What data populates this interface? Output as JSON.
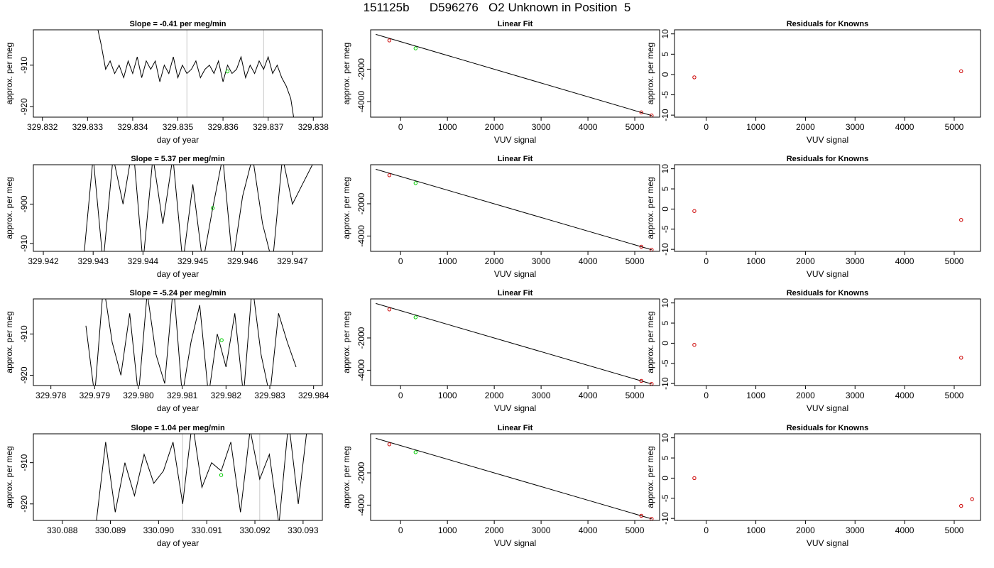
{
  "figure": {
    "title": "151125b      D596276   O2 Unknown in Position  5"
  },
  "colors": {
    "trace": "#000000",
    "unknown_marker": "#00cc00",
    "known_marker": "#cc0000",
    "vline": "#c8c8c8",
    "frame": "#000000"
  },
  "chart_data": [
    {
      "type": "line",
      "row": 0,
      "col": 0,
      "title": "Slope =  -0.41  per meg/min",
      "xlabel": "day of year",
      "ylabel": "approx. per meg",
      "xlim": [
        329.8318,
        329.8382
      ],
      "ylim": [
        -922.5,
        -901.5
      ],
      "xticks": [
        329.832,
        329.833,
        329.834,
        329.835,
        329.836,
        329.837,
        329.838
      ],
      "xtick_labels": [
        "329.832",
        "329.833",
        "329.834",
        "329.835",
        "329.836",
        "329.837",
        "329.838"
      ],
      "yticks": [
        -910,
        -920
      ],
      "ytick_labels": [
        "-910",
        "-920"
      ],
      "vlines": [
        329.8352,
        329.8369
      ],
      "trace_x": [
        329.8332,
        329.8333,
        329.8334,
        329.8335,
        329.8336,
        329.8337,
        329.8338,
        329.8339,
        329.834,
        329.8341,
        329.8342,
        329.8343,
        329.8344,
        329.8345,
        329.8346,
        329.8347,
        329.8348,
        329.8349,
        329.835,
        329.8351,
        329.8352,
        329.8353,
        329.8354,
        329.8355,
        329.8356,
        329.8357,
        329.8358,
        329.8359,
        329.836,
        329.8361,
        329.8362,
        329.8363,
        329.8364,
        329.8365,
        329.8366,
        329.8367,
        329.8368,
        329.8369,
        329.837,
        329.8371,
        329.8372,
        329.8373,
        329.8374,
        329.8375,
        329.8376
      ],
      "trace_y": [
        -900,
        -905,
        -911,
        -909,
        -912,
        -910,
        -913,
        -909,
        -912,
        -908,
        -913,
        -909,
        -911,
        -909,
        -914,
        -910,
        -912,
        -908,
        -913,
        -910,
        -912,
        -911,
        -909,
        -913,
        -911,
        -910,
        -912,
        -909,
        -914,
        -910,
        -912,
        -911,
        -908,
        -913,
        -910,
        -912,
        -909,
        -911,
        -908,
        -912,
        -910,
        -913,
        -915,
        -918,
        -925
      ],
      "unknown_point": [
        329.8361,
        -911.5
      ]
    },
    {
      "type": "line",
      "row": 1,
      "col": 0,
      "title": "Slope =  5.37  per meg/min",
      "xlabel": "day of year",
      "ylabel": "approx. per meg",
      "xlim": [
        329.9418,
        329.9476
      ],
      "ylim": [
        -912,
        -890
      ],
      "xticks": [
        329.942,
        329.943,
        329.944,
        329.945,
        329.946,
        329.947
      ],
      "xtick_labels": [
        "329.942",
        "329.943",
        "329.944",
        "329.945",
        "329.946",
        "329.947"
      ],
      "yticks": [
        -900,
        -910
      ],
      "ytick_labels": [
        "-900",
        "-910"
      ],
      "vlines": [],
      "trace_x": [
        329.9428,
        329.943,
        329.9432,
        329.9434,
        329.9436,
        329.9438,
        329.944,
        329.9442,
        329.9444,
        329.9446,
        329.9448,
        329.945,
        329.9452,
        329.9454,
        329.9456,
        329.9458,
        329.946,
        329.9462,
        329.9464,
        329.9466,
        329.9468,
        329.947,
        329.9472,
        329.9474
      ],
      "trace_y": [
        -915,
        -888,
        -915,
        -888,
        -900,
        -885,
        -915,
        -888,
        -905,
        -888,
        -915,
        -895,
        -915,
        -901,
        -888,
        -915,
        -898,
        -888,
        -905,
        -915,
        -888,
        -900,
        -895,
        -890
      ],
      "unknown_point": [
        329.9454,
        -901
      ]
    },
    {
      "type": "line",
      "row": 2,
      "col": 0,
      "title": "Slope =  -5.24  per meg/min",
      "xlabel": "day of year",
      "ylabel": "approx. per meg",
      "xlim": [
        329.9776,
        329.9842
      ],
      "ylim": [
        -922.5,
        -901.5
      ],
      "xticks": [
        329.978,
        329.979,
        329.98,
        329.981,
        329.982,
        329.983,
        329.984
      ],
      "xtick_labels": [
        "329.978",
        "329.979",
        "329.980",
        "329.981",
        "329.982",
        "329.983",
        "329.984"
      ],
      "yticks": [
        -910,
        -920
      ],
      "ytick_labels": [
        "-910",
        "-920"
      ],
      "vlines": [],
      "trace_x": [
        329.9788,
        329.979,
        329.9792,
        329.9794,
        329.9796,
        329.9798,
        329.98,
        329.9802,
        329.9804,
        329.9806,
        329.9808,
        329.981,
        329.9812,
        329.9814,
        329.9816,
        329.9818,
        329.982,
        329.9822,
        329.9824,
        329.9826,
        329.9828,
        329.983,
        329.9832,
        329.9834,
        329.9836
      ],
      "trace_y": [
        -908,
        -925,
        -898,
        -912,
        -920,
        -905,
        -925,
        -900,
        -915,
        -922,
        -898,
        -925,
        -912,
        -903,
        -925,
        -910,
        -918,
        -905,
        -925,
        -898,
        -915,
        -925,
        -905,
        -912,
        -918
      ],
      "unknown_point": [
        329.9819,
        -911.5
      ]
    },
    {
      "type": "line",
      "row": 3,
      "col": 0,
      "title": "Slope =  1.04  per meg/min",
      "xlabel": "day of year",
      "ylabel": "approx. per meg",
      "xlim": [
        330.0874,
        330.0934
      ],
      "ylim": [
        -924,
        -903
      ],
      "xticks": [
        330.088,
        330.089,
        330.09,
        330.091,
        330.092,
        330.093
      ],
      "xtick_labels": [
        "330.088",
        "330.089",
        "330.090",
        "330.091",
        "330.092",
        "330.093"
      ],
      "yticks": [
        -910,
        -920
      ],
      "ytick_labels": [
        "-910",
        "-920"
      ],
      "vlines": [
        330.0905,
        330.0921
      ],
      "trace_x": [
        330.0887,
        330.0889,
        330.0891,
        330.0893,
        330.0895,
        330.0897,
        330.0899,
        330.0901,
        330.0903,
        330.0905,
        330.0907,
        330.0909,
        330.0911,
        330.0913,
        330.0915,
        330.0917,
        330.0919,
        330.0921,
        330.0923,
        330.0925,
        330.0927,
        330.0929,
        330.0931
      ],
      "trace_y": [
        -925,
        -905,
        -922,
        -910,
        -918,
        -908,
        -915,
        -912,
        -905,
        -920,
        -900,
        -916,
        -910,
        -912,
        -905,
        -922,
        -902,
        -914,
        -908,
        -925,
        -900,
        -920,
        -900
      ],
      "unknown_point": [
        330.0913,
        -913
      ]
    },
    {
      "type": "scatter",
      "row": 0,
      "col": 1,
      "title": "Linear Fit",
      "xlabel": "VUV signal",
      "ylabel": "approx. per meg",
      "xlim": [
        -640,
        5530
      ],
      "ylim": [
        -4950,
        420
      ],
      "xticks": [
        0,
        1000,
        2000,
        3000,
        4000,
        5000
      ],
      "xtick_labels": [
        "0",
        "1000",
        "2000",
        "3000",
        "4000",
        "5000"
      ],
      "yticks": [
        -2000,
        -4000
      ],
      "ytick_labels": [
        "-2000",
        "-4000"
      ],
      "fit_line": [
        [
          -530,
          140
        ],
        [
          5360,
          -4850
        ]
      ],
      "known_points": [
        [
          -240,
          -230
        ],
        [
          5140,
          -4660
        ],
        [
          5360,
          -4850
        ]
      ],
      "unknown_points": [
        [
          320,
          -720
        ]
      ]
    },
    {
      "type": "scatter",
      "row": 1,
      "col": 1,
      "title": "Linear Fit",
      "xlabel": "VUV signal",
      "ylabel": "approx. per meg",
      "xlim": [
        -640,
        5530
      ],
      "ylim": [
        -4950,
        420
      ],
      "xticks": [
        0,
        1000,
        2000,
        3000,
        4000,
        5000
      ],
      "xtick_labels": [
        "0",
        "1000",
        "2000",
        "3000",
        "4000",
        "5000"
      ],
      "yticks": [
        -2000,
        -4000
      ],
      "ytick_labels": [
        "-2000",
        "-4000"
      ],
      "fit_line": [
        [
          -530,
          140
        ],
        [
          5360,
          -4850
        ]
      ],
      "known_points": [
        [
          -240,
          -230
        ],
        [
          5140,
          -4660
        ],
        [
          5360,
          -4850
        ]
      ],
      "unknown_points": [
        [
          320,
          -720
        ]
      ]
    },
    {
      "type": "scatter",
      "row": 2,
      "col": 1,
      "title": "Linear Fit",
      "xlabel": "VUV signal",
      "ylabel": "approx. per meg",
      "xlim": [
        -640,
        5530
      ],
      "ylim": [
        -4950,
        420
      ],
      "xticks": [
        0,
        1000,
        2000,
        3000,
        4000,
        5000
      ],
      "xtick_labels": [
        "0",
        "1000",
        "2000",
        "3000",
        "4000",
        "5000"
      ],
      "yticks": [
        -2000,
        -4000
      ],
      "ytick_labels": [
        "-2000",
        "-4000"
      ],
      "fit_line": [
        [
          -530,
          140
        ],
        [
          5360,
          -4850
        ]
      ],
      "known_points": [
        [
          -240,
          -230
        ],
        [
          5140,
          -4660
        ],
        [
          5360,
          -4850
        ]
      ],
      "unknown_points": [
        [
          320,
          -720
        ]
      ]
    },
    {
      "type": "scatter",
      "row": 3,
      "col": 1,
      "title": "Linear Fit",
      "xlabel": "VUV signal",
      "ylabel": "approx. per meg",
      "xlim": [
        -640,
        5530
      ],
      "ylim": [
        -4950,
        420
      ],
      "xticks": [
        0,
        1000,
        2000,
        3000,
        4000,
        5000
      ],
      "xtick_labels": [
        "0",
        "1000",
        "2000",
        "3000",
        "4000",
        "5000"
      ],
      "yticks": [
        -2000,
        -4000
      ],
      "ytick_labels": [
        "-2000",
        "-4000"
      ],
      "fit_line": [
        [
          -530,
          140
        ],
        [
          5360,
          -4850
        ]
      ],
      "known_points": [
        [
          -240,
          -230
        ],
        [
          5140,
          -4660
        ],
        [
          5360,
          -4850
        ]
      ],
      "unknown_points": [
        [
          320,
          -720
        ]
      ]
    },
    {
      "type": "scatter",
      "row": 0,
      "col": 2,
      "title": "Residuals for Knowns",
      "xlabel": "VUV signal",
      "ylabel": "approx. per meg",
      "xlim": [
        -640,
        5530
      ],
      "ylim": [
        -10.5,
        11
      ],
      "xticks": [
        0,
        1000,
        2000,
        3000,
        4000,
        5000
      ],
      "xtick_labels": [
        "0",
        "1000",
        "2000",
        "3000",
        "4000",
        "5000"
      ],
      "yticks": [
        10,
        5,
        0,
        -5,
        -10
      ],
      "ytick_labels": [
        "10",
        "5",
        "0",
        "-5",
        "-10"
      ],
      "points": [
        [
          -240,
          -0.7
        ],
        [
          5140,
          0.8
        ]
      ]
    },
    {
      "type": "scatter",
      "row": 1,
      "col": 2,
      "title": "Residuals for Knowns",
      "xlabel": "VUV signal",
      "ylabel": "approx. per meg",
      "xlim": [
        -640,
        5530
      ],
      "ylim": [
        -10.5,
        11
      ],
      "xticks": [
        0,
        1000,
        2000,
        3000,
        4000,
        5000
      ],
      "xtick_labels": [
        "0",
        "1000",
        "2000",
        "3000",
        "4000",
        "5000"
      ],
      "yticks": [
        10,
        5,
        0,
        -5,
        -10
      ],
      "ytick_labels": [
        "10",
        "5",
        "0",
        "-5",
        "-10"
      ],
      "points": [
        [
          -240,
          -0.5
        ],
        [
          5140,
          -2.7
        ]
      ]
    },
    {
      "type": "scatter",
      "row": 2,
      "col": 2,
      "title": "Residuals for Knowns",
      "xlabel": "VUV signal",
      "ylabel": "approx. per meg",
      "xlim": [
        -640,
        5530
      ],
      "ylim": [
        -10.5,
        11
      ],
      "xticks": [
        0,
        1000,
        2000,
        3000,
        4000,
        5000
      ],
      "xtick_labels": [
        "0",
        "1000",
        "2000",
        "3000",
        "4000",
        "5000"
      ],
      "yticks": [
        10,
        5,
        0,
        -5,
        -10
      ],
      "ytick_labels": [
        "10",
        "5",
        "0",
        "-5",
        "-10"
      ],
      "points": [
        [
          -240,
          -0.4
        ],
        [
          5140,
          -3.6
        ]
      ]
    },
    {
      "type": "scatter",
      "row": 3,
      "col": 2,
      "title": "Residuals for Knowns",
      "xlabel": "VUV signal",
      "ylabel": "approx. per meg",
      "xlim": [
        -640,
        5530
      ],
      "ylim": [
        -10.5,
        11
      ],
      "xticks": [
        0,
        1000,
        2000,
        3000,
        4000,
        5000
      ],
      "xtick_labels": [
        "0",
        "1000",
        "2000",
        "3000",
        "4000",
        "5000"
      ],
      "yticks": [
        10,
        5,
        0,
        -5,
        -10
      ],
      "ytick_labels": [
        "10",
        "5",
        "0",
        "-5",
        "-10"
      ],
      "points": [
        [
          -240,
          0.0
        ],
        [
          5140,
          -6.9
        ],
        [
          5360,
          -5.2
        ]
      ]
    }
  ]
}
